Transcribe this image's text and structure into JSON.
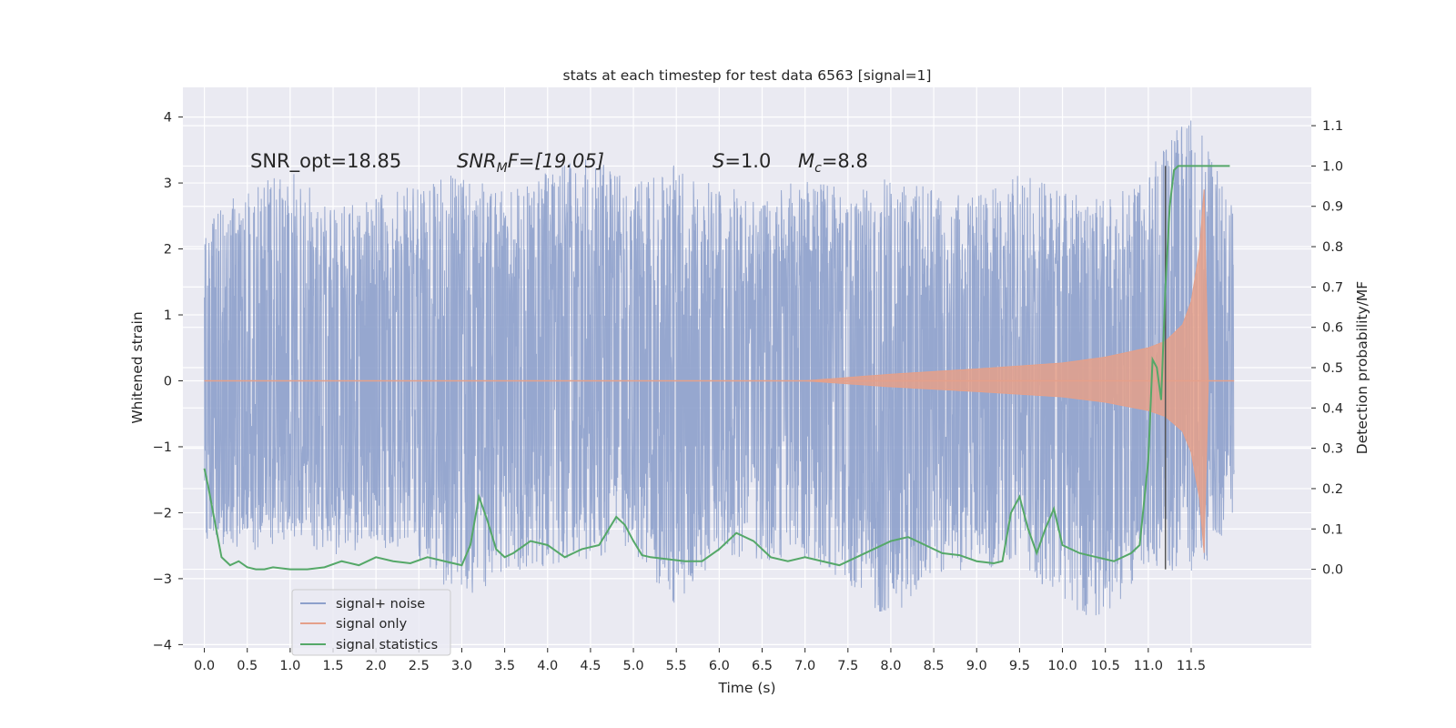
{
  "chart_data": {
    "type": "line",
    "title": "stats at each timestep for test data 6563 [signal=1]",
    "xlabel": "Time (s)",
    "ylabel_left": "Whitened strain",
    "ylabel_right": "Detection probability/MF",
    "xlim": [
      -0.25,
      12.9
    ],
    "ylim_left": [
      -4.05,
      4.45
    ],
    "ylim_right": [
      -0.195,
      1.195
    ],
    "x_ticks": [
      0.0,
      0.5,
      1.0,
      1.5,
      2.0,
      2.5,
      3.0,
      3.5,
      4.0,
      4.5,
      5.0,
      5.5,
      6.0,
      6.5,
      7.0,
      7.5,
      8.0,
      8.5,
      9.0,
      9.5,
      10.0,
      10.5,
      11.0,
      11.5
    ],
    "x_tick_labels": [
      "0.0",
      "0.5",
      "1.0",
      "1.5",
      "2.0",
      "2.5",
      "3.0",
      "3.5",
      "4.0",
      "4.5",
      "5.0",
      "5.5",
      "6.0",
      "6.5",
      "7.0",
      "7.5",
      "8.0",
      "8.5",
      "9.0",
      "9.5",
      "10.0",
      "10.5",
      "11.0",
      "11.5"
    ],
    "y_left_ticks": [
      4,
      3,
      2,
      1,
      0,
      -1,
      -2,
      -3,
      -4
    ],
    "y_left_tick_labels": [
      "4",
      "3",
      "2",
      "1",
      "0",
      "−1",
      "−2",
      "−3",
      "−4"
    ],
    "y_right_ticks": [
      1.1,
      1.0,
      0.9,
      0.8,
      0.7,
      0.6,
      0.5,
      0.4,
      0.3,
      0.2,
      0.1,
      0.0
    ],
    "y_right_tick_labels": [
      "1.1",
      "1.0",
      "0.9",
      "0.8",
      "0.7",
      "0.6",
      "0.5",
      "0.4",
      "0.3",
      "0.2",
      "0.1",
      "0.0"
    ],
    "grid": true,
    "legend_position": "lower-left",
    "annotations": {
      "snr_opt": "SNR_opt=18.85",
      "snr_mf_main": "SNR",
      "snr_mf_sub": "M",
      "snr_mf_rest": "F=[19.05]",
      "s_label": "S",
      "s_value": "=1.0",
      "mc_label": "M",
      "mc_sub": "c",
      "mc_value": "=8.8"
    },
    "marker_line_x": 11.2,
    "series": [
      {
        "name": "signal+ noise",
        "color": "#8da0cb",
        "axis": "left",
        "x_range": [
          0.0,
          12.0
        ],
        "envelope": {
          "x": [
            0.0,
            0.5,
            1.0,
            1.5,
            2.0,
            2.5,
            3.0,
            3.5,
            4.0,
            4.5,
            5.0,
            5.5,
            6.0,
            6.5,
            7.0,
            7.5,
            8.0,
            8.5,
            9.0,
            9.5,
            10.0,
            10.5,
            11.0,
            11.5,
            12.0
          ],
          "upper": [
            2.6,
            2.9,
            3.25,
            2.6,
            2.8,
            3.0,
            3.15,
            2.9,
            3.2,
            3.4,
            3.0,
            3.3,
            3.0,
            2.8,
            3.1,
            2.9,
            3.1,
            2.9,
            2.8,
            3.15,
            2.9,
            2.8,
            3.2,
            4.1,
            2.6
          ],
          "lower": [
            -2.4,
            -2.6,
            -2.4,
            -2.7,
            -2.5,
            -2.7,
            -3.4,
            -2.9,
            -2.8,
            -2.7,
            -2.6,
            -3.5,
            -2.6,
            -2.8,
            -2.7,
            -3.1,
            -3.65,
            -2.9,
            -2.9,
            -2.7,
            -3.5,
            -3.6,
            -2.8,
            -3.0,
            -2.3
          ]
        }
      },
      {
        "name": "signal only",
        "color": "#e5a08a",
        "axis": "left",
        "x": [
          0.0,
          7.0,
          8.0,
          9.0,
          10.0,
          10.5,
          11.0,
          11.2,
          11.4,
          11.5,
          11.6,
          11.65,
          11.7,
          12.0
        ],
        "amplitude": [
          0.0,
          0.0,
          0.1,
          0.18,
          0.27,
          0.36,
          0.5,
          0.6,
          0.85,
          1.2,
          2.0,
          2.9,
          0.0,
          0.0
        ]
      },
      {
        "name": "signal statistics",
        "color": "#55a868",
        "axis": "right",
        "x": [
          0.0,
          0.05,
          0.12,
          0.2,
          0.3,
          0.4,
          0.5,
          0.6,
          0.7,
          0.8,
          1.0,
          1.2,
          1.4,
          1.6,
          1.8,
          2.0,
          2.2,
          2.4,
          2.6,
          2.8,
          3.0,
          3.1,
          3.2,
          3.3,
          3.4,
          3.5,
          3.6,
          3.8,
          4.0,
          4.2,
          4.4,
          4.6,
          4.8,
          4.9,
          5.0,
          5.1,
          5.2,
          5.4,
          5.6,
          5.8,
          6.0,
          6.2,
          6.4,
          6.6,
          6.8,
          7.0,
          7.2,
          7.4,
          7.6,
          7.8,
          8.0,
          8.2,
          8.4,
          8.6,
          8.8,
          9.0,
          9.2,
          9.3,
          9.4,
          9.5,
          9.6,
          9.7,
          9.8,
          9.9,
          10.0,
          10.2,
          10.4,
          10.6,
          10.8,
          10.9,
          11.0,
          11.05,
          11.1,
          11.15,
          11.2,
          11.25,
          11.3,
          11.35,
          11.4,
          11.5,
          11.6,
          11.7,
          11.8,
          11.9,
          11.95
        ],
        "values": [
          0.25,
          0.2,
          0.12,
          0.03,
          0.01,
          0.02,
          0.005,
          0.0,
          0.0,
          0.005,
          0.0,
          0.0,
          0.005,
          0.02,
          0.01,
          0.03,
          0.02,
          0.015,
          0.03,
          0.02,
          0.01,
          0.06,
          0.18,
          0.12,
          0.05,
          0.03,
          0.04,
          0.07,
          0.06,
          0.03,
          0.05,
          0.06,
          0.13,
          0.11,
          0.07,
          0.035,
          0.03,
          0.025,
          0.02,
          0.02,
          0.05,
          0.09,
          0.07,
          0.03,
          0.02,
          0.03,
          0.02,
          0.01,
          0.03,
          0.05,
          0.07,
          0.08,
          0.06,
          0.04,
          0.035,
          0.02,
          0.015,
          0.02,
          0.14,
          0.18,
          0.1,
          0.04,
          0.1,
          0.15,
          0.06,
          0.04,
          0.03,
          0.02,
          0.04,
          0.06,
          0.27,
          0.52,
          0.5,
          0.42,
          0.7,
          0.9,
          0.99,
          1.0,
          1.0,
          1.0,
          1.0,
          1.0,
          1.0,
          1.0,
          1.0
        ]
      }
    ]
  }
}
